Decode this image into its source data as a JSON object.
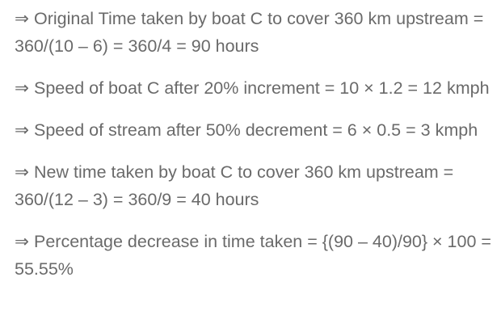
{
  "solution": {
    "steps": [
      "⇒ Original Time taken by boat C to cover 360 km upstream = 360/(10 – 6) = 360/4 = 90 hours",
      "⇒ Speed of boat C after 20% increment = 10 × 1.2 = 12 kmph",
      "⇒ Speed of stream after 50% decrement = 6 × 0.5 = 3 kmph",
      "⇒ New time taken by boat C to cover 360 km upstream = 360/(12 – 3) = 360/9 = 40 hours",
      "⇒ Percentage decrease in time taken = {(90 – 40)/90} × 100 = 55.55%"
    ]
  },
  "colors": {
    "text": "#6a6a6a",
    "background": "#ffffff"
  }
}
